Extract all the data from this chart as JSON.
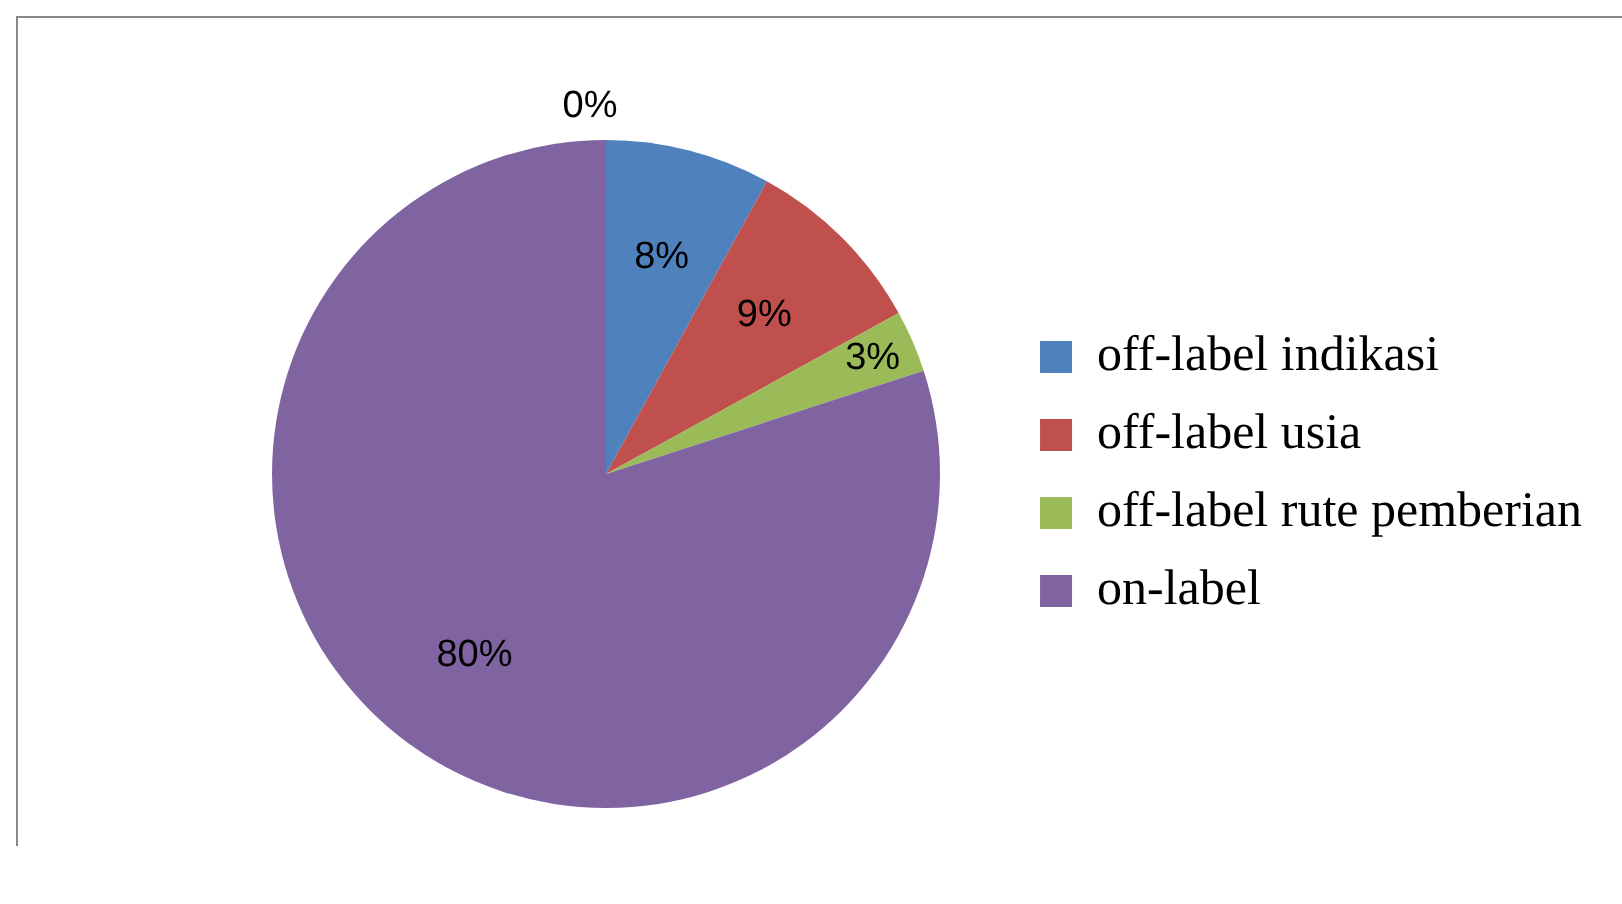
{
  "chart_data": {
    "type": "pie",
    "categories": [
      "off-label indikasi",
      "off-label usia",
      "off-label rute pemberian",
      "on-label",
      null
    ],
    "values": [
      8,
      9,
      3,
      80,
      0
    ],
    "colors": [
      "#4f81bd",
      "#c0504d",
      "#9bbb59",
      "#8064a2",
      "#4bacc6"
    ],
    "value_labels": [
      "8%",
      "9%",
      "3%",
      "80%",
      "0%"
    ],
    "legend": "right"
  }
}
